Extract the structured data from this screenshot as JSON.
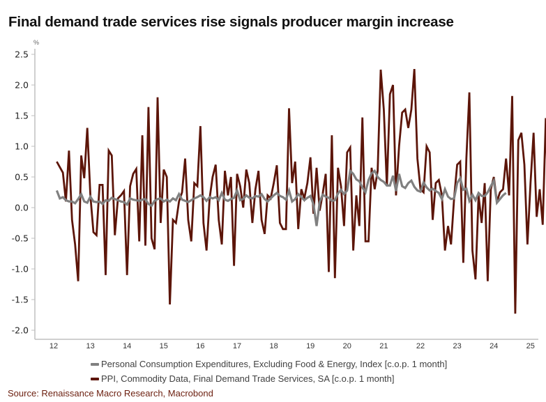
{
  "header": {
    "title": "Final demand trade services rise signals producer margin increase"
  },
  "legend": {
    "items": [
      {
        "label": "Personal Consumption Expenditures, Excluding Food & Energy, Index [c.o.p. 1 month]",
        "color": "#808080"
      },
      {
        "label": "PPI, Commodity Data, Final Demand Trade Services, SA [c.o.p. 1 month]",
        "color": "#5c1509"
      }
    ]
  },
  "footer": {
    "source": "Source: Renaissance Macro Research, Macrobond"
  },
  "chart_data": {
    "type": "line",
    "title": "Final demand trade services rise signals producer margin increase",
    "xlabel": "",
    "ylabel": "%",
    "ylim": [
      -2.0,
      2.5
    ],
    "yticks": [
      "2.5",
      "2.0",
      "1.5",
      "1.0",
      "0.5",
      "0.0",
      "-0.5",
      "-1.0",
      "-1.5",
      "-2.0"
    ],
    "ytick_values": [
      2.5,
      2.0,
      1.5,
      1.0,
      0.5,
      0.0,
      -0.5,
      -1.0,
      -1.5,
      -2.0
    ],
    "xticks": [
      "12",
      "13",
      "14",
      "15",
      "16",
      "17",
      "18",
      "19",
      "20",
      "21",
      "22",
      "23",
      "24",
      "25"
    ],
    "x_start": "2012-08",
    "x_frequency": "monthly",
    "grid": false,
    "legend_position": "bottom",
    "series": [
      {
        "name": "Personal Consumption Expenditures, Excluding Food & Energy, Index [c.o.p. 1 month]",
        "color": "#808080",
        "values": [
          0.28,
          0.15,
          0.17,
          0.12,
          0.1,
          0.1,
          0.07,
          0.14,
          0.22,
          0.1,
          0.08,
          0.18,
          0.1,
          0.09,
          0.1,
          0.06,
          0.12,
          0.11,
          0.16,
          0.14,
          0.12,
          0.1,
          0.09,
          0.05,
          0.15,
          0.13,
          0.12,
          0.11,
          0.13,
          0.14,
          0.06,
          0.03,
          0.11,
          0.14,
          0.15,
          0.1,
          0.13,
          0.1,
          0.15,
          0.12,
          0.22,
          0.13,
          0.11,
          0.09,
          0.12,
          0.15,
          0.17,
          0.2,
          0.17,
          0.11,
          0.17,
          0.15,
          0.17,
          0.12,
          0.24,
          0.13,
          0.11,
          0.14,
          0.16,
          0.28,
          0.12,
          0.14,
          0.2,
          0.16,
          0.15,
          0.19,
          0.18,
          0.22,
          0.14,
          0.1,
          0.15,
          0.2,
          0.24,
          0.19,
          0.17,
          0.13,
          0.28,
          0.1,
          0.14,
          0.22,
          0.17,
          0.12,
          0.16,
          0.19,
          0.05,
          -0.3,
          0.09,
          0.21,
          0.18,
          0.16,
          0.11,
          0.12,
          0.23,
          0.29,
          0.22,
          0.28,
          0.6,
          0.55,
          0.46,
          0.43,
          0.33,
          0.25,
          0.45,
          0.56,
          0.6,
          0.5,
          0.45,
          0.42,
          0.36,
          0.36,
          0.52,
          0.27,
          0.55,
          0.35,
          0.32,
          0.4,
          0.44,
          0.34,
          0.28,
          0.26,
          0.41,
          0.33,
          0.28,
          0.31,
          0.27,
          0.24,
          0.14,
          0.3,
          0.18,
          0.14,
          0.15,
          0.4,
          0.48,
          0.29,
          0.31,
          0.11,
          0.21,
          0.12,
          0.24,
          0.19,
          0.19,
          0.25,
          0.35,
          0.44,
          0.08,
          0.14,
          0.2,
          0.24
        ]
      },
      {
        "name": "PPI, Commodity Data, Final Demand Trade Services, SA [c.o.p. 1 month]",
        "color": "#5c1509",
        "values": [
          0.75,
          0.66,
          0.57,
          0.1,
          0.93,
          -0.2,
          -0.6,
          -1.2,
          0.85,
          0.48,
          1.3,
          0.2,
          -0.4,
          -0.45,
          0.37,
          0.37,
          -1.1,
          0.93,
          0.85,
          -0.45,
          0.15,
          0.2,
          0.27,
          -1.1,
          0.35,
          0.55,
          0.63,
          -0.55,
          1.18,
          -0.62,
          1.64,
          -0.5,
          -0.68,
          1.8,
          -0.25,
          0.62,
          0.5,
          -1.58,
          -0.2,
          -0.25,
          0.1,
          0.25,
          0.8,
          -0.2,
          -0.55,
          0.4,
          0.35,
          1.33,
          -0.25,
          -0.7,
          0.15,
          0.5,
          0.7,
          -0.2,
          -0.6,
          0.6,
          0.2,
          0.5,
          -0.95,
          0.55,
          0.35,
          0.0,
          0.62,
          0.4,
          -0.25,
          0.3,
          0.6,
          -0.2,
          -0.43,
          0.2,
          0.15,
          0.4,
          0.69,
          -0.25,
          -0.35,
          -0.35,
          1.62,
          0.4,
          0.75,
          -0.35,
          0.3,
          0.15,
          0.4,
          0.82,
          -0.1,
          0.65,
          -0.05,
          0.22,
          0.55,
          -1.05,
          1.18,
          -1.15,
          0.65,
          0.35,
          -0.3,
          0.9,
          0.98,
          -0.7,
          0.2,
          -0.3,
          1.47,
          -0.55,
          -0.55,
          0.65,
          0.3,
          0.6,
          2.25,
          1.6,
          0.35,
          1.85,
          2.0,
          0.2,
          1.0,
          1.55,
          1.6,
          1.3,
          1.6,
          2.26,
          0.8,
          0.3,
          0.25,
          1.0,
          0.9,
          -0.2,
          0.4,
          0.45,
          0.2,
          -0.7,
          -0.3,
          -0.6,
          0.15,
          0.7,
          0.75,
          -0.9,
          0.8,
          1.88,
          -0.7,
          -1.17,
          0.2,
          -0.25,
          0.4,
          -1.2,
          0.3,
          0.5,
          0.1,
          0.25,
          0.3,
          0.8,
          0.2,
          1.82,
          -1.73,
          1.1,
          1.22,
          0.7,
          -0.6,
          0.4,
          1.22,
          -0.15,
          0.3,
          -0.28,
          1.46,
          -0.29,
          0.44,
          2.03
        ]
      }
    ]
  }
}
